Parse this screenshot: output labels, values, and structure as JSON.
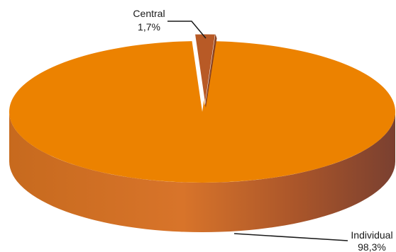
{
  "chart_data": {
    "type": "pie",
    "style": "3d",
    "slices": [
      {
        "name": "Central",
        "value": 1.7,
        "label": "1,7%",
        "color": "#b85a26",
        "side_color": "#8c4422"
      },
      {
        "name": "Individual",
        "value": 98.3,
        "label": "98,3%",
        "color": "#ec8200",
        "side_color": "#c96e20"
      }
    ],
    "title": "",
    "legend": "none"
  }
}
